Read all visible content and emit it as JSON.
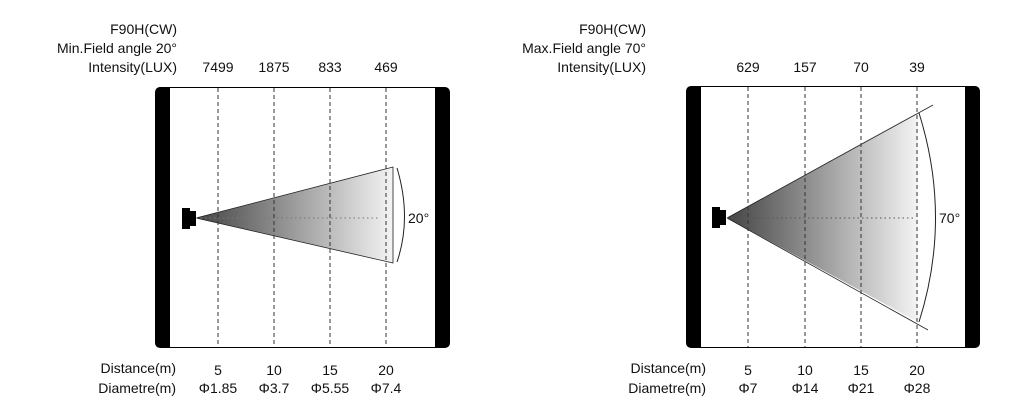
{
  "panels": [
    {
      "model": "F90H(CW)",
      "field_label": "Min.Field angle 20°",
      "intensity_label": "Intensity(LUX)",
      "intensities": [
        "7499",
        "1875",
        "833",
        "469"
      ],
      "angle_label": "20°",
      "beam_angle_deg": 20,
      "distance_label": "Distance(m)",
      "distances": [
        "5",
        "10",
        "15",
        "20"
      ],
      "diameter_label": "Diametre(m)",
      "diameters": [
        "Φ1.85",
        "Φ3.7",
        "Φ5.55",
        "Φ7.4"
      ]
    },
    {
      "model": "F90H(CW)",
      "field_label": "Max.Field angle 70°",
      "intensity_label": "Intensity(LUX)",
      "intensities": [
        "629",
        "157",
        "70",
        "39"
      ],
      "angle_label": "70°",
      "beam_angle_deg": 70,
      "distance_label": "Distance(m)",
      "distances": [
        "5",
        "10",
        "15",
        "20"
      ],
      "diameter_label": "Diametre(m)",
      "diameters": [
        "Φ7",
        "Φ14",
        "Φ21",
        "Φ28"
      ]
    }
  ]
}
